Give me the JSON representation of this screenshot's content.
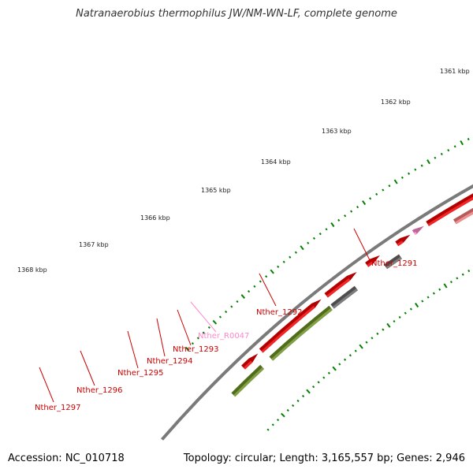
{
  "title": "Natranaerobius thermophilus JW/NM-WN-LF, complete genome",
  "footer": {
    "accession": "Accession: NC_010718",
    "summary": "Topology: circular; Length: 3,165,557 bp; Genes: 2,946"
  },
  "colors": {
    "backbone": "#7a7a7a",
    "cds": "#ee0000",
    "cds_lower": "#ef7a7a",
    "gray_feature": "#666666",
    "light_gray_feature": "#c4c4c4",
    "olive_feature": "#6b8e23",
    "rna": "#ff88cc",
    "tick": "#008000",
    "label": "#cc0000",
    "rna_label": "#ff88cc"
  },
  "scale_labels": [
    "1361 kbp",
    "1362 kbp",
    "1363 kbp",
    "1364 kbp",
    "1365 kbp",
    "1366 kbp",
    "1367 kbp",
    "1368 kbp"
  ],
  "gene_labels": [
    {
      "text": "Nther_1291",
      "color": "label"
    },
    {
      "text": "Nther_1292",
      "color": "label"
    },
    {
      "text": "Nther_R0047",
      "color": "rna_label"
    },
    {
      "text": "Nther_1293",
      "color": "label"
    },
    {
      "text": "Nther_1294",
      "color": "label"
    },
    {
      "text": "Nther_1295",
      "color": "label"
    },
    {
      "text": "Nther_1296",
      "color": "label"
    },
    {
      "text": "Nther_1297",
      "color": "label"
    }
  ]
}
